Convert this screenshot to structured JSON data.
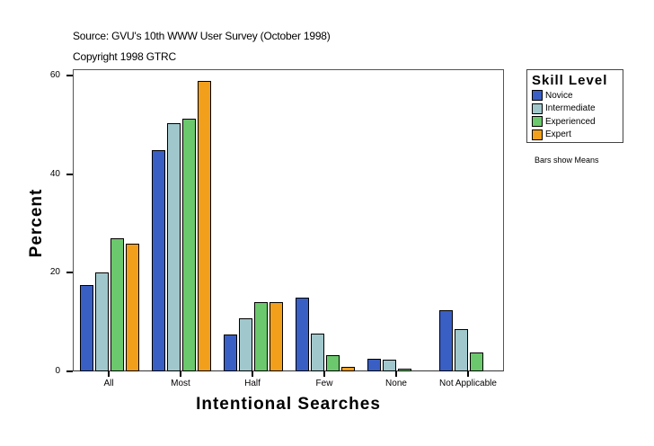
{
  "header": {
    "source": "Source: GVU's 10th WWW User Survey (October 1998)",
    "copyright": "Copyright 1998 GTRC"
  },
  "note": "Bars show Means",
  "legend": {
    "title": "Skill Level",
    "items": [
      {
        "label": "Novice",
        "color": "#3a5fc4"
      },
      {
        "label": "Intermediate",
        "color": "#a0c8cc"
      },
      {
        "label": "Experienced",
        "color": "#6cc86c"
      },
      {
        "label": "Expert",
        "color": "#f2a01c"
      }
    ]
  },
  "chart_data": {
    "type": "bar",
    "title": "",
    "xlabel": "Intentional Searches",
    "ylabel": "Percent",
    "ylim": [
      0,
      60
    ],
    "yticks": [
      0,
      20,
      40,
      60
    ],
    "grid": false,
    "legend_position": "right",
    "categories": [
      "All",
      "Most",
      "Half",
      "Few",
      "None",
      "Not Applicable"
    ],
    "series": [
      {
        "name": "Novice",
        "color": "#3a5fc4",
        "values": [
          17.5,
          44.9,
          7.5,
          15.0,
          2.6,
          12.4
        ]
      },
      {
        "name": "Intermediate",
        "color": "#a0c8cc",
        "values": [
          20.1,
          50.4,
          10.8,
          7.7,
          2.4,
          8.6
        ]
      },
      {
        "name": "Experienced",
        "color": "#6cc86c",
        "values": [
          27.0,
          51.3,
          14.1,
          3.3,
          0.5,
          3.8
        ]
      },
      {
        "name": "Expert",
        "color": "#f2a01c",
        "values": [
          25.9,
          58.9,
          14.1,
          0.9,
          null,
          null
        ]
      }
    ]
  }
}
